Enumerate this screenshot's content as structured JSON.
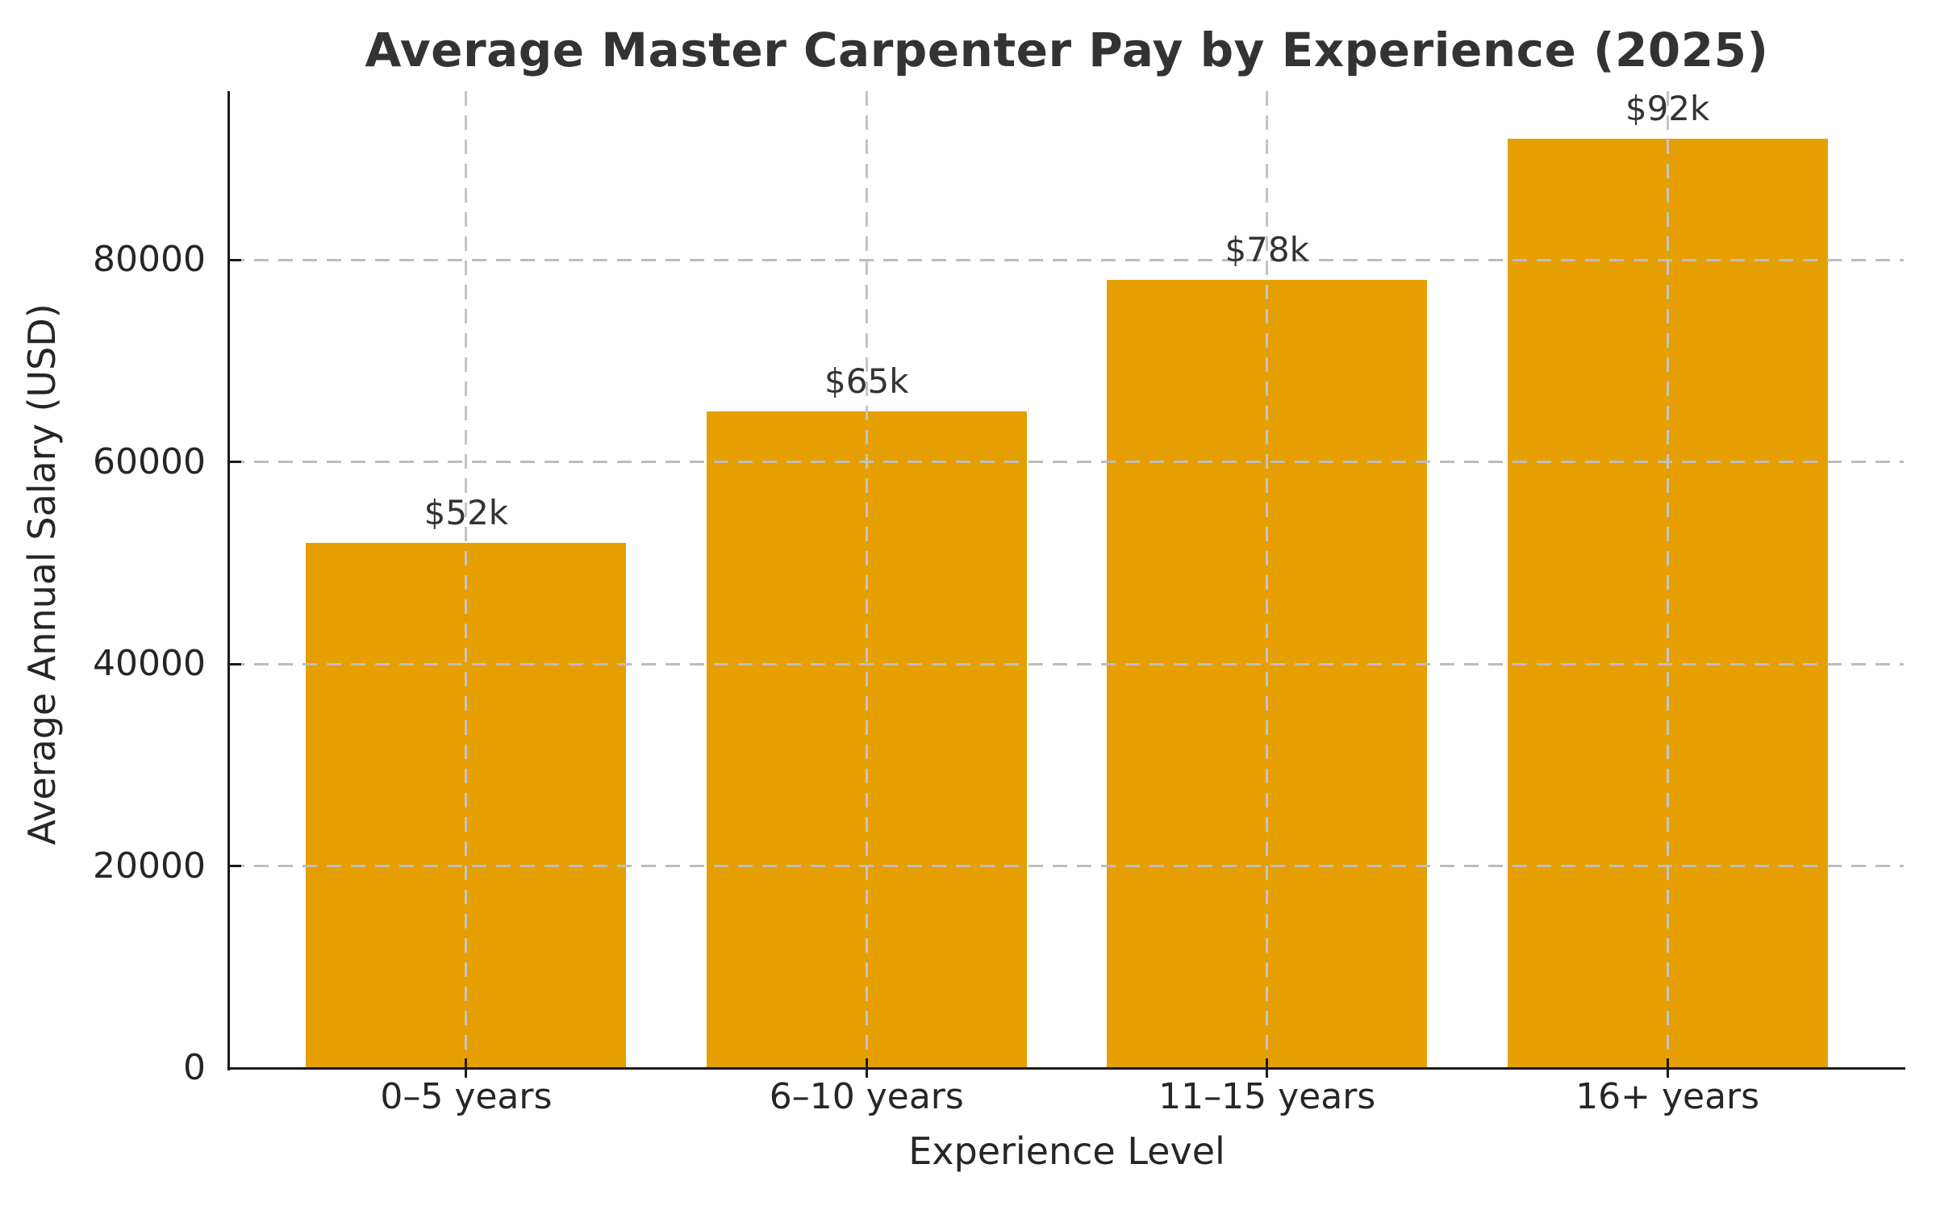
{
  "chart_data": {
    "type": "bar",
    "title": "Average Master Carpenter Pay by Experience (2025)",
    "xlabel": "Experience Level",
    "ylabel": "Average Annual Salary (USD)",
    "categories": [
      "0–5 years",
      "6–10 years",
      "11–15 years",
      "16+ years"
    ],
    "values": [
      52000,
      65000,
      78000,
      92000
    ],
    "bar_labels": [
      "$52k",
      "$65k",
      "$78k",
      "$92k"
    ],
    "yticks": [
      0,
      20000,
      40000,
      60000,
      80000
    ],
    "ytick_labels": [
      "0",
      "20000",
      "40000",
      "60000",
      "80000"
    ],
    "ylim": [
      0,
      96700
    ],
    "bar_color": "#E69F00",
    "background_color": "#ffffff",
    "text_color": "#262626",
    "grid": {
      "visible": true,
      "style": "dashed",
      "color": "#bdbdbd",
      "axes": "both",
      "drawn_above_bars": true
    },
    "legend": {
      "visible": false
    }
  }
}
